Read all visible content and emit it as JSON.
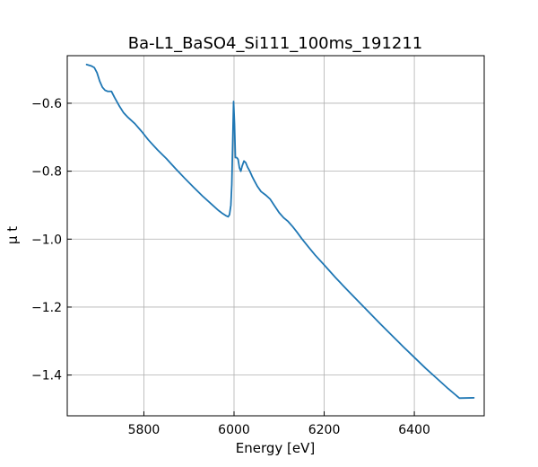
{
  "chart_data": {
    "type": "line",
    "title": "Ba-L1_BaSO4_Si111_100ms_191211",
    "xlabel": "Energy [eV]",
    "ylabel": "μ t",
    "xlim": [
      5630,
      6555
    ],
    "ylim": [
      -1.52,
      -0.46
    ],
    "xticks": [
      5800,
      6000,
      6200,
      6400
    ],
    "yticks": [
      -0.6,
      -0.8,
      -1.0,
      -1.2,
      -1.4
    ],
    "xtick_labels": [
      "5800",
      "6000",
      "6200",
      "6400"
    ],
    "ytick_labels": [
      "−0.6",
      "−0.8",
      "−1.0",
      "−1.2",
      "−1.4"
    ],
    "grid": true,
    "series": [
      {
        "color": "#1f77b4",
        "x": [
          5673,
          5683,
          5690,
          5696,
          5702,
          5708,
          5714,
          5720,
          5728,
          5735,
          5745,
          5755,
          5765,
          5780,
          5795,
          5810,
          5830,
          5850,
          5870,
          5890,
          5910,
          5930,
          5950,
          5965,
          5975,
          5982,
          5987,
          5990,
          5993,
          5995,
          5997,
          5999,
          6001,
          6003,
          6006,
          6009,
          6012,
          6015,
          6018,
          6022,
          6026,
          6030,
          6035,
          6040,
          6045,
          6052,
          6060,
          6070,
          6080,
          6090,
          6100,
          6110,
          6120,
          6130,
          6140,
          6150,
          6165,
          6180,
          6200,
          6225,
          6250,
          6275,
          6300,
          6325,
          6350,
          6375,
          6400,
          6425,
          6450,
          6475,
          6500,
          6532
        ],
        "y": [
          -0.486,
          -0.49,
          -0.495,
          -0.51,
          -0.535,
          -0.553,
          -0.562,
          -0.565,
          -0.565,
          -0.583,
          -0.607,
          -0.628,
          -0.642,
          -0.66,
          -0.683,
          -0.708,
          -0.737,
          -0.763,
          -0.792,
          -0.82,
          -0.847,
          -0.873,
          -0.897,
          -0.915,
          -0.925,
          -0.931,
          -0.934,
          -0.928,
          -0.9,
          -0.84,
          -0.72,
          -0.595,
          -0.66,
          -0.76,
          -0.76,
          -0.765,
          -0.79,
          -0.8,
          -0.785,
          -0.77,
          -0.775,
          -0.788,
          -0.8,
          -0.815,
          -0.828,
          -0.845,
          -0.86,
          -0.87,
          -0.882,
          -0.902,
          -0.922,
          -0.937,
          -0.948,
          -0.963,
          -0.98,
          -0.998,
          -1.023,
          -1.047,
          -1.076,
          -1.113,
          -1.148,
          -1.182,
          -1.216,
          -1.25,
          -1.283,
          -1.316,
          -1.348,
          -1.38,
          -1.41,
          -1.44,
          -1.468,
          -1.467
        ]
      }
    ]
  }
}
